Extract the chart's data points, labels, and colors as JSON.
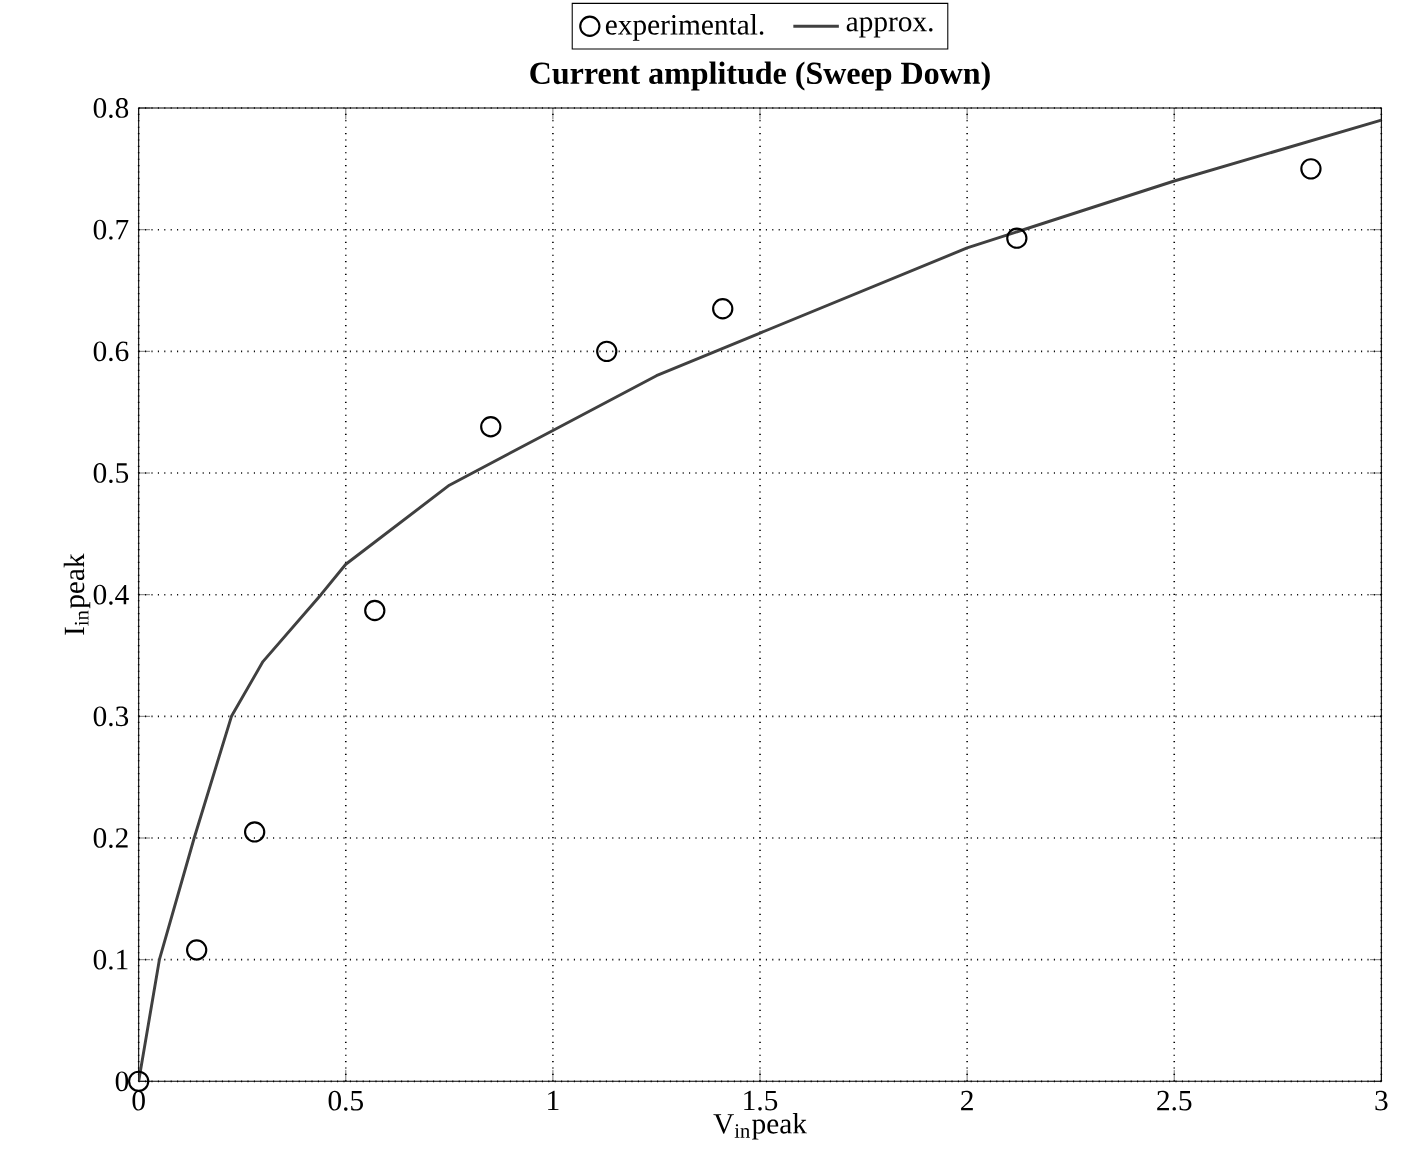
{
  "chart_data": {
    "type": "line",
    "title": "Current amplitude (Sweep Down)",
    "xlabel": "V$_{in}$peak",
    "ylabel": "I$_{in}$peak",
    "series": [
      {
        "name": "experimental.",
        "type": "scatter",
        "marker": "circle",
        "color": "#000000",
        "x": [
          0,
          0.14,
          0.28,
          0.57,
          0.85,
          1.13,
          1.41,
          2.12,
          2.83
        ],
        "values": [
          0,
          0.108,
          0.205,
          0.387,
          0.538,
          0.6,
          0.635,
          0.693,
          0.75
        ]
      },
      {
        "name": "approx.",
        "line_style": "solid",
        "color": "#404040",
        "x": [
          0,
          0.05,
          0.134,
          0.224,
          0.3,
          0.44,
          0.5,
          0.75,
          1,
          1.25,
          1.5,
          2,
          2.5,
          3
        ],
        "values": [
          0,
          0.1,
          0.2,
          0.3,
          0.345,
          0.4,
          0.425,
          0.49,
          0.535,
          0.58,
          0.615,
          0.685,
          0.74,
          0.79
        ]
      }
    ],
    "xlim": [
      0,
      3
    ],
    "ylim": [
      0,
      0.8
    ],
    "xticks": [
      0,
      0.5,
      1,
      1.5,
      2,
      2.5,
      3
    ],
    "yticks": [
      0,
      0.1,
      0.2,
      0.3,
      0.4,
      0.5,
      0.6,
      0.7,
      0.8
    ],
    "grid": true,
    "legend": "top"
  }
}
